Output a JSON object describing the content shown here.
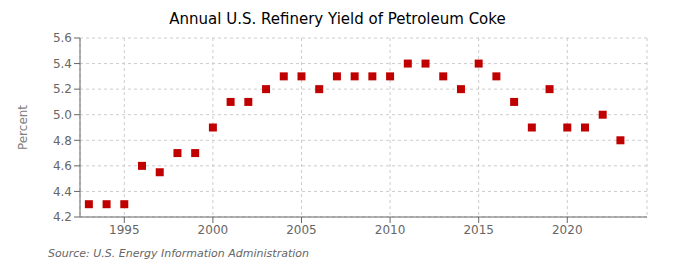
{
  "chart_data": {
    "type": "scatter",
    "title": "Annual U.S. Refinery Yield of Petroleum Coke",
    "y_label": "Percent",
    "annotation": "Source: U.S. Energy Information Administration",
    "x": [
      1993,
      1994,
      1995,
      1996,
      1997,
      1998,
      1999,
      2000,
      2001,
      2002,
      2003,
      2004,
      2005,
      2006,
      2007,
      2008,
      2009,
      2010,
      2011,
      2012,
      2013,
      2014,
      2015,
      2016,
      2017,
      2018,
      2019,
      2020,
      2021,
      2022,
      2023
    ],
    "values": [
      4.3,
      4.3,
      4.3,
      4.6,
      4.55,
      4.7,
      4.7,
      4.9,
      5.1,
      5.1,
      5.2,
      5.3,
      5.3,
      5.2,
      5.3,
      5.3,
      5.3,
      5.3,
      5.4,
      5.4,
      5.3,
      5.2,
      5.4,
      5.3,
      5.1,
      4.9,
      5.2,
      4.9,
      4.9,
      5.0,
      4.8
    ],
    "xlim": [
      1992.5,
      2024.5
    ],
    "ylim": [
      4.2,
      5.6
    ],
    "xticks": [
      1995,
      2000,
      2005,
      2010,
      2015,
      2020
    ],
    "yticks": [
      4.2,
      4.4,
      4.6,
      4.8,
      {
        "value": 5,
        "label": "5.0"
      },
      5.2,
      5.4,
      5.6
    ],
    "color": "#c00000",
    "marker": "square",
    "grid": true
  }
}
